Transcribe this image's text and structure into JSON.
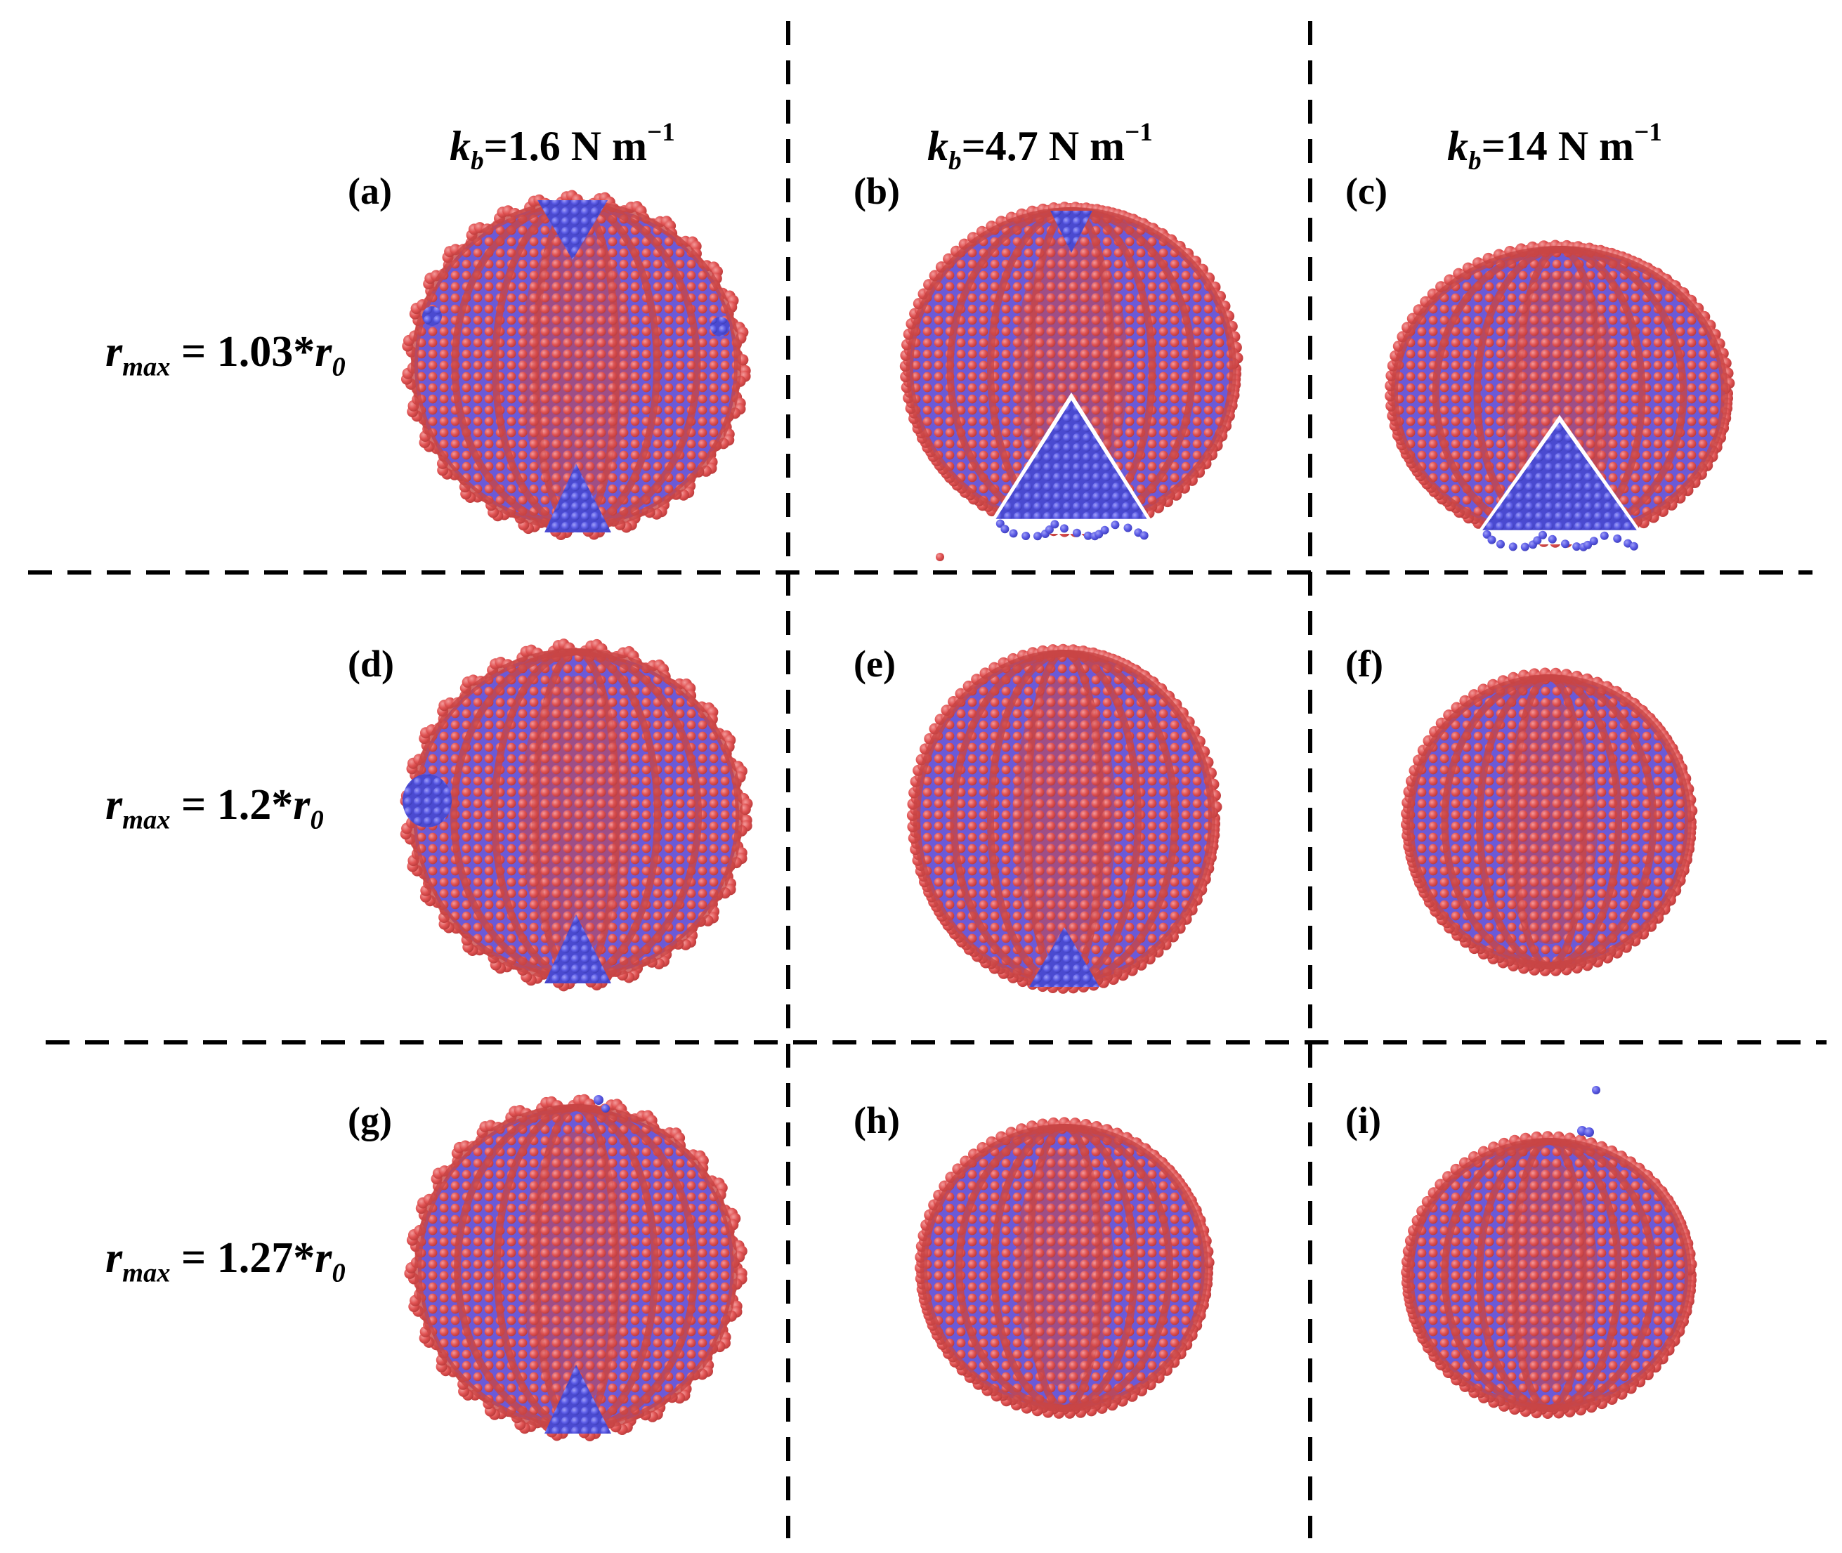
{
  "columns": [
    {
      "sym": "k",
      "sub": "b",
      "rest": "=1.6 N m",
      "sup": "−1"
    },
    {
      "sym": "k",
      "sub": "b",
      "rest": "=4.7 N m",
      "sup": "−1"
    },
    {
      "sym": "k",
      "sub": "b",
      "rest": "=14 N m",
      "sup": "−1"
    }
  ],
  "rows": [
    {
      "sym": "r",
      "sub": "max",
      "rest": " = 1.03*",
      "sym2": "r",
      "sub2": "0"
    },
    {
      "sym": "r",
      "sub": "max",
      "rest": " = 1.2*",
      "sym2": "r",
      "sub2": "0"
    },
    {
      "sym": "r",
      "sub": "max",
      "rest": " = 1.27*",
      "sym2": "r",
      "sub2": "0"
    }
  ],
  "panels": [
    "(a)",
    "(b)",
    "(c)",
    "(d)",
    "(e)",
    "(f)",
    "(g)",
    "(h)",
    "(i)"
  ],
  "colors": {
    "bead_red": "#e05252",
    "bead_red_dark": "#b93a3a",
    "bead_blue": "#5b5be6",
    "bead_blue_dark": "#3c3cb8",
    "divider": "#000000"
  }
}
